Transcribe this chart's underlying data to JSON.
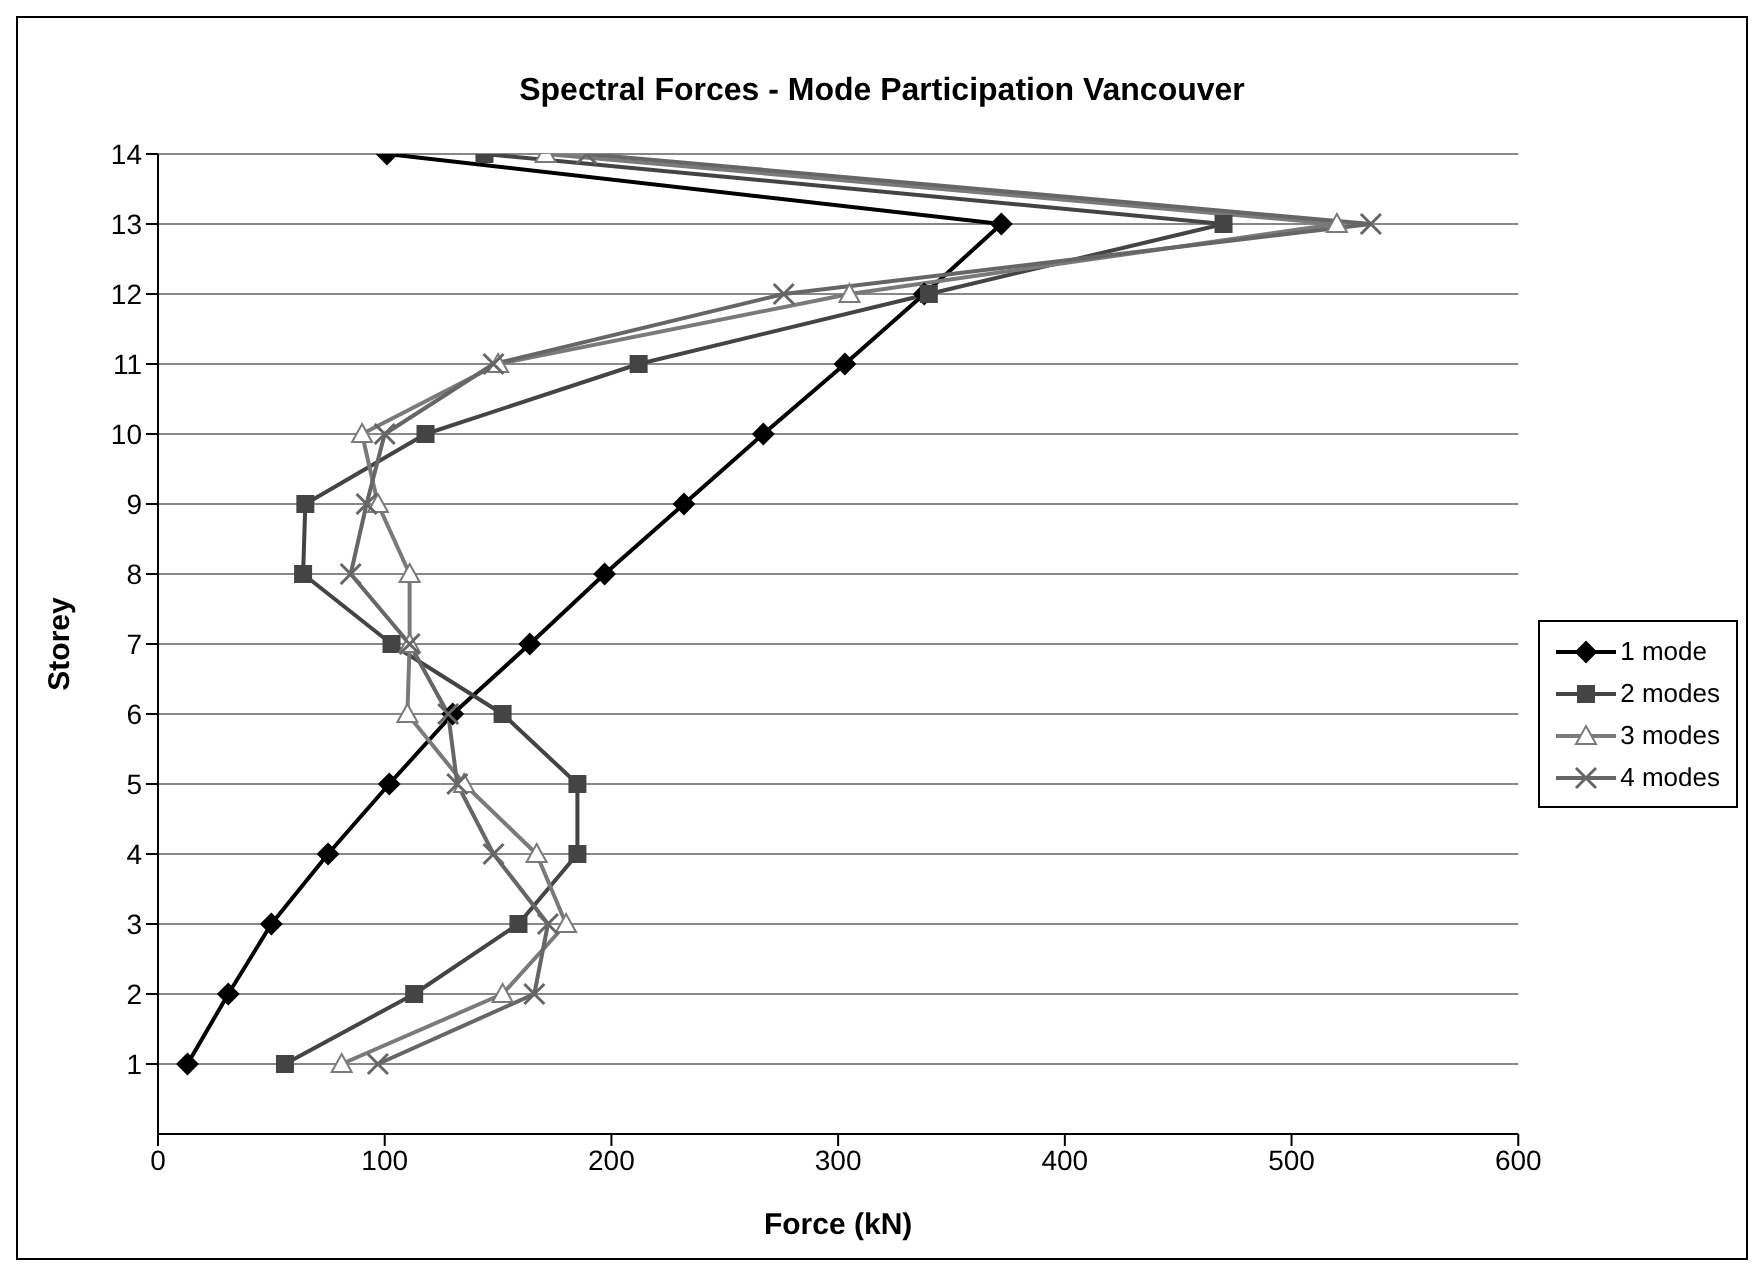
{
  "chart_data": {
    "type": "line",
    "title": "Spectral Forces - Mode Participation Vancouver",
    "xlabel": "Force (kN)",
    "ylabel": "Storey",
    "orientation": "horizontal",
    "x": [
      1,
      2,
      3,
      4,
      5,
      6,
      7,
      8,
      9,
      10,
      11,
      12,
      13,
      14
    ],
    "series": [
      {
        "name": "1 mode",
        "color": "#000000",
        "marker": "diamond",
        "values": [
          13,
          31,
          50,
          75,
          102,
          130,
          164,
          197,
          232,
          267,
          303,
          338,
          372,
          101
        ]
      },
      {
        "name": "2 modes",
        "color": "#444444",
        "marker": "square",
        "values": [
          56,
          113,
          159,
          185,
          185,
          152,
          103,
          64,
          65,
          118,
          212,
          340,
          470,
          144
        ]
      },
      {
        "name": "3 modes",
        "color": "#7a7a7a",
        "marker": "triangle",
        "values": [
          81,
          152,
          180,
          167,
          135,
          110,
          111,
          111,
          97,
          90,
          150,
          305,
          520,
          171
        ]
      },
      {
        "name": "4 modes",
        "color": "#666666",
        "marker": "cross",
        "values": [
          97,
          166,
          172,
          148,
          132,
          128,
          111,
          85,
          92,
          100,
          148,
          276,
          535,
          189
        ]
      }
    ],
    "xlim": [
      0,
      600
    ],
    "xticks": [
      0,
      100,
      200,
      300,
      400,
      500,
      600
    ],
    "ylim": [
      0,
      14
    ],
    "yticks": [
      1,
      2,
      3,
      4,
      5,
      6,
      7,
      8,
      9,
      10,
      11,
      12,
      13,
      14
    ],
    "grid": "y",
    "legend": "right",
    "line_style": "solid"
  }
}
